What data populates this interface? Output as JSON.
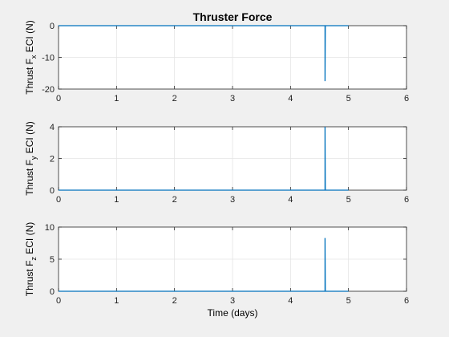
{
  "chart_data": {
    "type": "line",
    "title": "Thruster Force",
    "xlabel": "Time (days)",
    "xlim": [
      0,
      6
    ],
    "xticks": [
      0,
      1,
      2,
      3,
      4,
      5,
      6
    ],
    "panels": [
      {
        "ylabel_pre": "Thrust F",
        "ylabel_sub": "x",
        "ylabel_post": " ECI (N)",
        "ylim": [
          -20,
          0
        ],
        "yticks": [
          -20,
          -10,
          0
        ],
        "grid": true,
        "series": [
          {
            "x": [
              0,
              4.59,
              4.595,
              4.595,
              4.6,
              5.0
            ],
            "y": [
              0,
              0,
              0,
              -17.5,
              0,
              0
            ]
          }
        ]
      },
      {
        "ylabel_pre": "Thrust F",
        "ylabel_sub": "y",
        "ylabel_post": " ECI (N)",
        "ylim": [
          0,
          4
        ],
        "yticks": [
          0,
          2,
          4
        ],
        "grid": true,
        "series": [
          {
            "x": [
              0,
              4.59,
              4.595,
              4.595,
              4.6,
              5.0
            ],
            "y": [
              0,
              0,
              0,
              4.0,
              0,
              0
            ]
          }
        ]
      },
      {
        "ylabel_pre": "Thrust F",
        "ylabel_sub": "z",
        "ylabel_post": " ECI (N)",
        "ylim": [
          0,
          10
        ],
        "yticks": [
          0,
          5,
          10
        ],
        "grid": true,
        "series": [
          {
            "x": [
              0,
              4.59,
              4.595,
              4.595,
              4.6,
              5.0
            ],
            "y": [
              0,
              0,
              0,
              8.3,
              0,
              0
            ]
          }
        ]
      }
    ]
  }
}
